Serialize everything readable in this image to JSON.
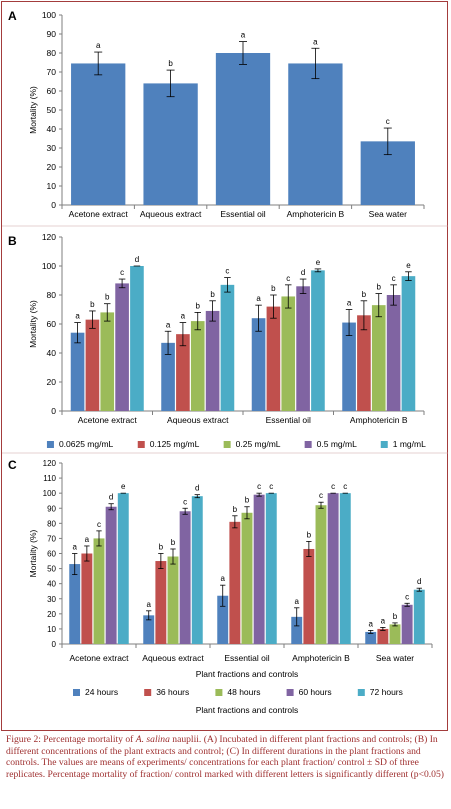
{
  "figure_caption": {
    "text_before": "Figure 2: Percentage mortality of ",
    "species": "A. salina",
    "text_after": " nauplii. (A) Incubated in different plant fractions and controls; (B) In different concentrations of the plant extracts and control; (C) In different durations in the plant fractions and controls. The values are means of experiments/ concentrations for each plant fraction/ control ± SD of three replicates. Percentage mortality of fraction/ control marked with different letters is significantly different (p<0.05)"
  },
  "colors": {
    "frame": "#a33c3c",
    "caption": "#9e2f2f",
    "single_bar": "#4f81bd",
    "series": [
      "#4f81bd",
      "#c0504d",
      "#9bbb59",
      "#8064a2",
      "#4bacc6"
    ]
  },
  "chart_data": [
    {
      "panel": "A",
      "type": "bar",
      "ylabel": "Mortality (%)",
      "xlabel": "",
      "ylim": [
        0,
        100
      ],
      "yticks": [
        0,
        10,
        20,
        30,
        40,
        50,
        60,
        70,
        80,
        90,
        100
      ],
      "categories": [
        "Acetone extract",
        "Aqueous extract",
        "Essential oil",
        "Amphotericin B",
        "Sea water"
      ],
      "series": [
        {
          "values": [
            74.5,
            64,
            80,
            74.5,
            33.5
          ],
          "errors": [
            6,
            7,
            6,
            8,
            7
          ],
          "letters": [
            "a",
            "b",
            "a",
            "a",
            "c"
          ]
        }
      ],
      "grid": false,
      "legend": "none"
    },
    {
      "panel": "B",
      "type": "bar",
      "ylabel": "Mortality (%)",
      "xlabel": "",
      "ylim": [
        0,
        120
      ],
      "yticks": [
        0,
        20,
        40,
        60,
        80,
        100,
        120
      ],
      "categories": [
        "Acetone extract",
        "Aqueous extract",
        "Essential oil",
        "Amphotericin  B"
      ],
      "series": [
        {
          "name": "0.0625 mg/mL",
          "values": [
            54,
            47,
            64,
            61
          ],
          "errors": [
            7,
            8,
            9,
            9
          ],
          "letters": [
            "a",
            "a",
            "a",
            "a"
          ]
        },
        {
          "name": "0.125 mg/mL",
          "values": [
            63,
            53,
            72,
            66
          ],
          "errors": [
            6,
            8,
            8,
            10
          ],
          "letters": [
            "b",
            "a",
            "b",
            "b"
          ]
        },
        {
          "name": "0.25 mg/mL",
          "values": [
            68,
            62,
            79,
            73
          ],
          "errors": [
            6,
            6,
            8,
            8
          ],
          "letters": [
            "b",
            "b",
            "c",
            "b"
          ]
        },
        {
          "name": "0.5 mg/mL",
          "values": [
            88,
            69,
            86,
            80
          ],
          "errors": [
            3,
            7,
            5,
            7
          ],
          "letters": [
            "c",
            "b",
            "d",
            "c"
          ]
        },
        {
          "name": "1 mg/mL",
          "values": [
            100,
            87,
            97,
            93
          ],
          "errors": [
            0,
            5,
            1,
            3
          ],
          "letters": [
            "d",
            "c",
            "e",
            "e"
          ]
        }
      ],
      "grid": false,
      "legend": "bottom"
    },
    {
      "panel": "C",
      "type": "bar",
      "ylabel": "Mortality (%)",
      "xlabel": "Plant fractions and controls",
      "xlabel_repeat": "Plant fractions and controls",
      "ylim": [
        0,
        120
      ],
      "yticks": [
        0,
        10,
        20,
        30,
        40,
        50,
        60,
        70,
        80,
        90,
        100,
        110,
        120
      ],
      "categories": [
        "Acetone extract",
        "Aqueous extract",
        "Essential oil",
        "Amphotericin B",
        "Sea water"
      ],
      "series": [
        {
          "name": "24 hours",
          "values": [
            53,
            19,
            32,
            18,
            8
          ],
          "errors": [
            7,
            3,
            7,
            6,
            1
          ],
          "letters": [
            "a",
            "a",
            "a",
            "a",
            "a"
          ]
        },
        {
          "name": "36 hours",
          "values": [
            60,
            55,
            81,
            63,
            10
          ],
          "errors": [
            5,
            5,
            4,
            5,
            1
          ],
          "letters": [
            "a",
            "b",
            "b",
            "b",
            "a"
          ]
        },
        {
          "name": "48 hours",
          "values": [
            70,
            58,
            87,
            92,
            13
          ],
          "errors": [
            5,
            5,
            4,
            2,
            1
          ],
          "letters": [
            "c",
            "b",
            "b",
            "c",
            "b"
          ]
        },
        {
          "name": "60 hours",
          "values": [
            91,
            88,
            99,
            100,
            26
          ],
          "errors": [
            2,
            2,
            1,
            0,
            1
          ],
          "letters": [
            "d",
            "c",
            "c",
            "c",
            "c"
          ]
        },
        {
          "name": "72 hours",
          "values": [
            100,
            98,
            100,
            100,
            36
          ],
          "errors": [
            0,
            1,
            0,
            0,
            1
          ],
          "letters": [
            "e",
            "d",
            "c",
            "c",
            "d"
          ]
        }
      ],
      "grid": false,
      "legend": "bottom"
    }
  ]
}
